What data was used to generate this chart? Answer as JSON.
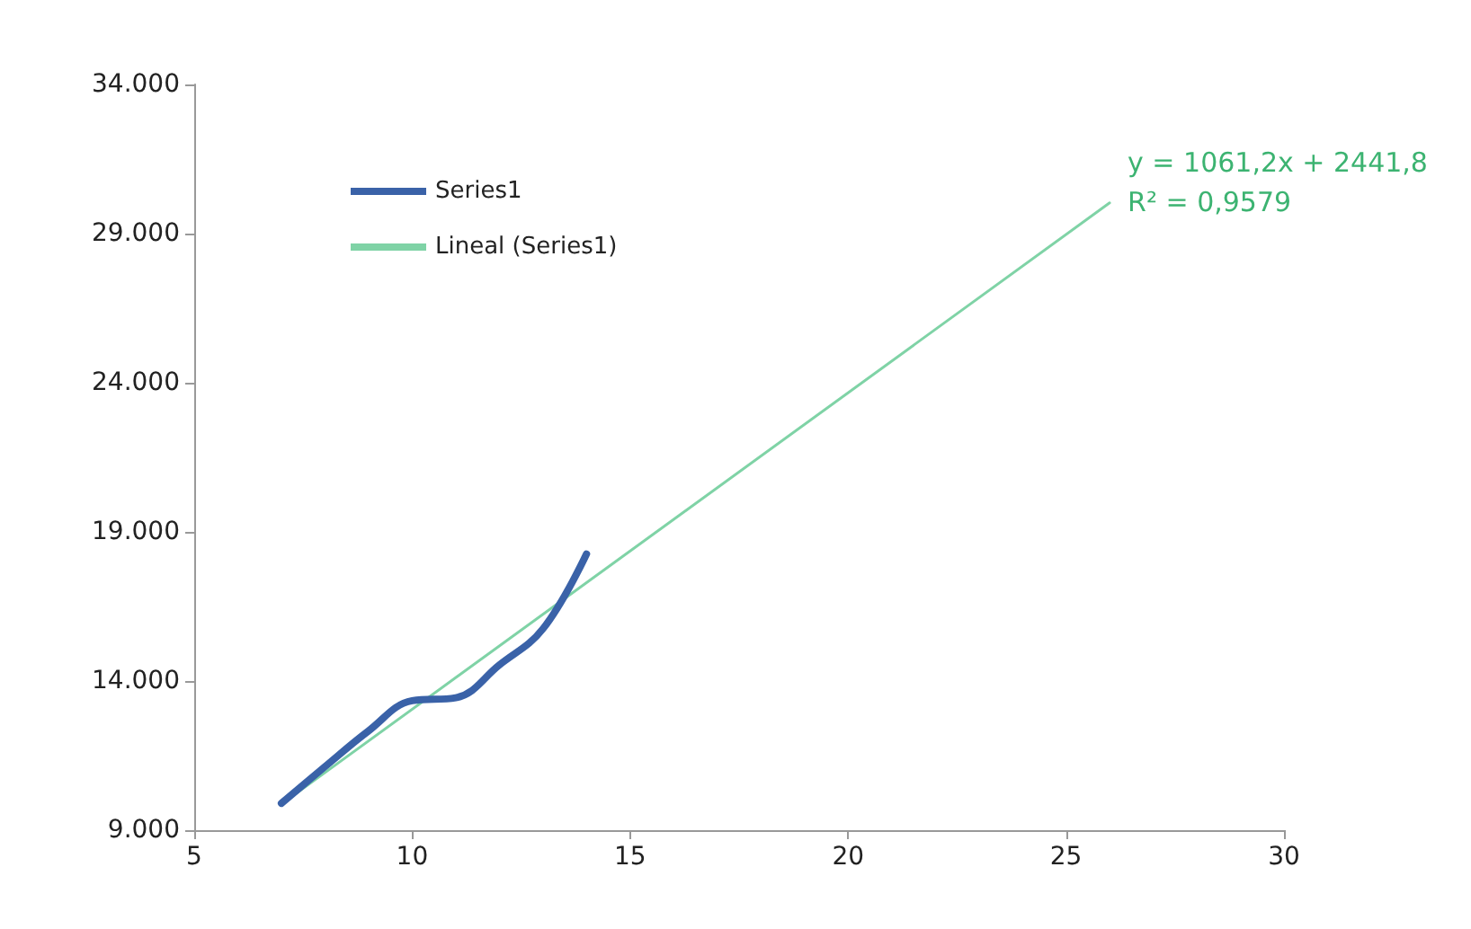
{
  "chart_data": {
    "type": "line",
    "x": [
      7,
      8,
      9,
      10,
      11,
      12,
      13,
      14
    ],
    "series": [
      {
        "name": "Series1",
        "color": "#3a62a8",
        "values": [
          9900,
          11130,
          12330,
          13340,
          13440,
          14540,
          15750,
          18260
        ]
      },
      {
        "name": "Lineal (Series1)",
        "color": "#7fd3a6",
        "type": "line",
        "x": [
          7,
          26
        ],
        "values": [
          9870,
          30030
        ]
      }
    ],
    "xlim": [
      5,
      30
    ],
    "xticks": [
      5,
      10,
      15,
      20,
      25,
      30
    ],
    "ylim": [
      9000,
      34000
    ],
    "yticks": [
      {
        "value": 9000,
        "label": "9.000"
      },
      {
        "value": 14000,
        "label": "14.000"
      },
      {
        "value": 19000,
        "label": "19.000"
      },
      {
        "value": 24000,
        "label": "24.000"
      },
      {
        "value": 29000,
        "label": "29.000"
      },
      {
        "value": 34000,
        "label": "34.000"
      }
    ],
    "annotations": [
      "y = 1061,2x + 2441,8",
      "R² = 0,9579"
    ],
    "legend": "top left",
    "grid": false,
    "marker": "none",
    "line_style": "solid"
  }
}
